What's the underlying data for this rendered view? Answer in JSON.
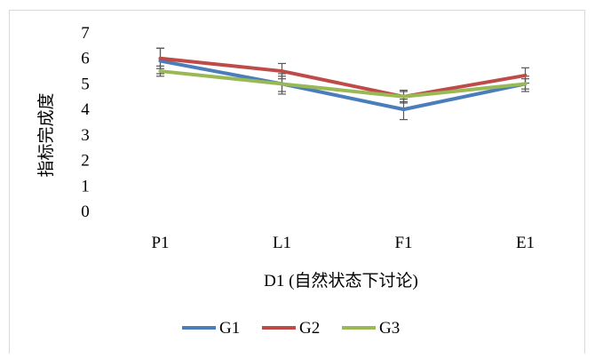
{
  "chart_data": {
    "type": "line",
    "categories": [
      "P1",
      "L1",
      "F1",
      "E1"
    ],
    "xlabel": "D1 (自然状态下讨论)",
    "ylabel": "指标完成度",
    "ylim": [
      0,
      7
    ],
    "yticks": [
      0,
      1,
      2,
      3,
      4,
      5,
      6,
      7
    ],
    "grid": false,
    "legend_position": "bottom",
    "series": [
      {
        "name": "G1",
        "color": "#4a7ebb",
        "values": [
          5.9,
          5.0,
          4.0,
          5.0
        ],
        "errors": [
          0.5,
          0.3,
          0.4,
          0.3
        ]
      },
      {
        "name": "G2",
        "color": "#be4b48",
        "values": [
          6.0,
          5.5,
          4.5,
          5.33
        ],
        "errors": [
          0.4,
          0.3,
          0.25,
          0.3
        ]
      },
      {
        "name": "G3",
        "color": "#98b954",
        "values": [
          5.5,
          5.0,
          4.5,
          5.0
        ],
        "errors": [
          0.2,
          0.4,
          0.2,
          0.2
        ]
      }
    ]
  }
}
